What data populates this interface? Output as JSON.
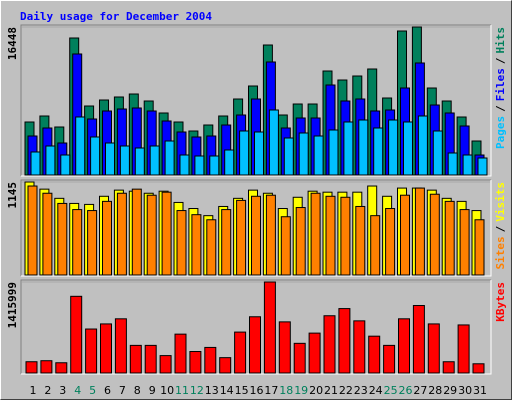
{
  "chart_data": [
    {
      "type": "bar",
      "title": "Daily usage for December 2004",
      "ylim": [
        0,
        16448
      ],
      "yticks": [
        16448
      ],
      "legend_separator": "/",
      "series": [
        {
          "name": "Pages",
          "color": "#00c0ff",
          "values": [
            2650,
            3312,
            2318,
            6514,
            4306,
            3643,
            3312,
            3091,
            3312,
            3864,
            2318,
            2208,
            2208,
            2870,
            4968,
            4858,
            7286,
            4195,
            4747,
            4416,
            5078,
            5962,
            6182,
            5299,
            6182,
            5962,
            6624,
            4968,
            2539,
            2318,
            1987
          ]
        },
        {
          "name": "Files",
          "color": "#0000ff",
          "values": [
            4416,
            5299,
            3643,
            13469,
            6293,
            7176,
            7397,
            7507,
            7176,
            6072,
            4858,
            4306,
            4416,
            5630,
            6734,
            8501,
            12586,
            5299,
            6403,
            6403,
            10046,
            8280,
            8501,
            7176,
            7286,
            9715,
            12475,
            7838,
            6955,
            5520,
            2318
          ]
        },
        {
          "name": "Hits",
          "color": "#00805c",
          "values": [
            5961,
            6623,
            5409,
            15234,
            7727,
            8390,
            8721,
            9052,
            8279,
            6955,
            5961,
            4967,
            5630,
            6623,
            8500,
            9935,
            14461,
            6734,
            7948,
            7948,
            11591,
            10597,
            11039,
            11812,
            8610,
            16006,
            16448,
            9714,
            8279,
            6513,
            3864
          ]
        }
      ]
    },
    {
      "type": "bar",
      "ylim": [
        0,
        1145
      ],
      "yticks": [
        1145
      ],
      "legend_separator": "/",
      "series": [
        {
          "name": "Sites",
          "color": "#ff8000",
          "values": [
            1096,
            1008,
            884,
            809,
            797,
            909,
            1008,
            1058,
            984,
            1021,
            797,
            747,
            685,
            809,
            921,
            971,
            984,
            722,
            834,
            1008,
            971,
            959,
            847,
            735,
            822,
            984,
            1071,
            996,
            909,
            809,
            685
          ]
        },
        {
          "name": "Visits",
          "color": "#ffff00",
          "values": [
            1145,
            1058,
            946,
            884,
            872,
            971,
            1046,
            1033,
            1008,
            1033,
            896,
            822,
            735,
            847,
            946,
            1046,
            1008,
            822,
            959,
            1033,
            1021,
            1021,
            1021,
            1096,
            971,
            1071,
            1071,
            1046,
            946,
            909,
            797
          ]
        }
      ]
    },
    {
      "type": "bar",
      "ylim": [
        0,
        1415999
      ],
      "yticks": [
        1415999
      ],
      "categories": [
        "1",
        "2",
        "3",
        "4",
        "5",
        "6",
        "7",
        "8",
        "9",
        "10",
        "11",
        "12",
        "13",
        "14",
        "15",
        "16",
        "17",
        "18",
        "19",
        "20",
        "21",
        "22",
        "23",
        "24",
        "25",
        "26",
        "27",
        "28",
        "29",
        "30",
        "31"
      ],
      "category_colors": [
        "#000000",
        "#000000",
        "#000000",
        "#00805c",
        "#00805c",
        "#000000",
        "#000000",
        "#000000",
        "#000000",
        "#000000",
        "#00805c",
        "#00805c",
        "#000000",
        "#000000",
        "#000000",
        "#000000",
        "#000000",
        "#00805c",
        "#00805c",
        "#000000",
        "#000000",
        "#000000",
        "#000000",
        "#000000",
        "#00805c",
        "#00805c",
        "#000000",
        "#000000",
        "#000000",
        "#000000",
        "#000000"
      ],
      "series": [
        {
          "name": "KBytes",
          "color": "#ff0000",
          "values": [
            188796,
            204529,
            173063,
            1195708,
            692252,
            770917,
            849582,
            440524,
            440524,
            283194,
            613587,
            346126,
            409058,
            251728,
            645053,
            881048,
            1415999,
            802383,
            471990,
            629320,
            896781,
            1006912,
            818116,
            582121,
            440524,
            849582,
            1054111,
            770917,
            188796,
            755184,
            157330
          ]
        }
      ]
    }
  ]
}
